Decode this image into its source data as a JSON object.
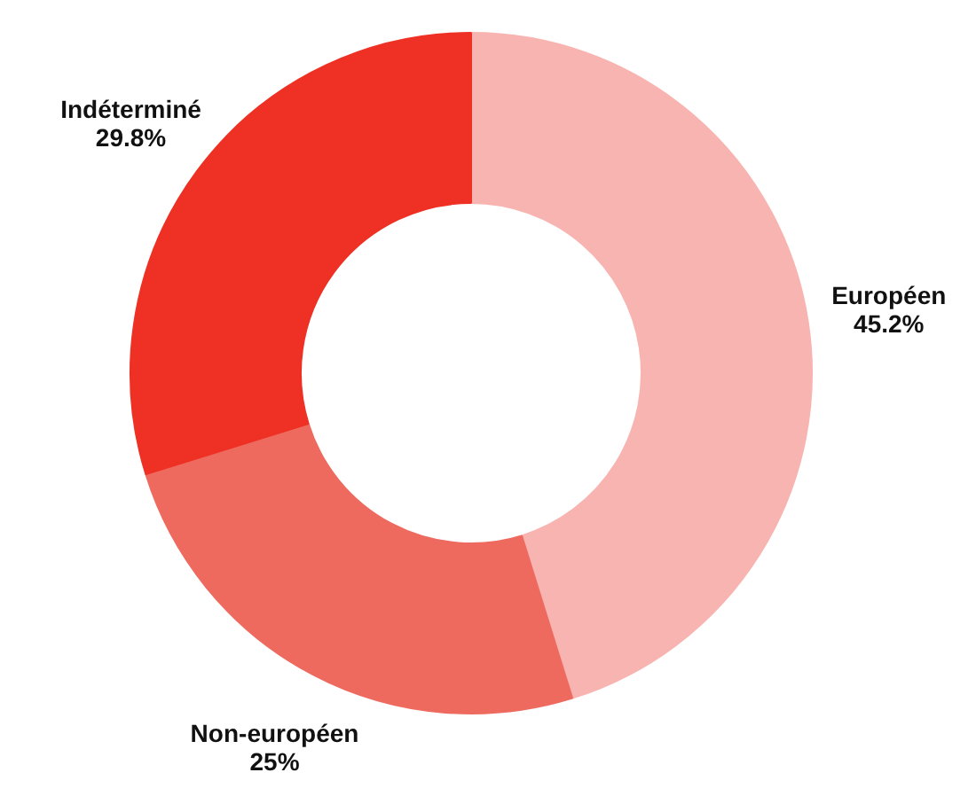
{
  "chart_data": {
    "type": "donut",
    "categories": [
      "Européen",
      "Non-européen",
      "Indéterminé"
    ],
    "values": [
      45.2,
      25,
      29.8
    ],
    "colors": [
      "#f8b4b0",
      "#ee6a5f",
      "#ee3124"
    ],
    "value_labels": [
      "45.2%",
      "25%",
      "29.8%"
    ]
  }
}
